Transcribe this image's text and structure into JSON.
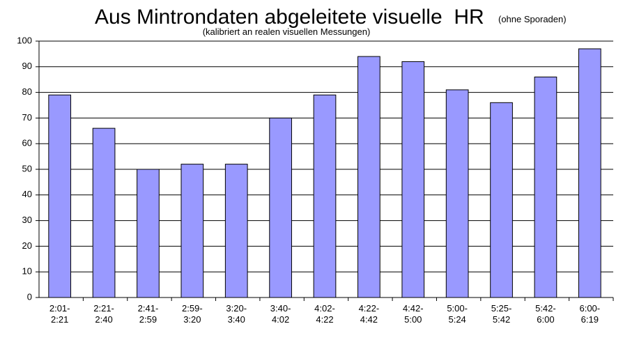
{
  "chart_data": {
    "type": "bar",
    "title": "Aus Mintrondaten abgeleitete visuelle  HR",
    "title_note": "(ohne Sporaden)",
    "subtitle": "(kalibriert an realen visuellen Messungen)",
    "categories": [
      [
        "2:01-",
        "2:21"
      ],
      [
        "2:21-",
        "2:40"
      ],
      [
        "2:41-",
        "2:59"
      ],
      [
        "2:59-",
        "3:20"
      ],
      [
        "3:20-",
        "3:40"
      ],
      [
        "3:40-",
        "4:02"
      ],
      [
        "4:02-",
        "4:22"
      ],
      [
        "4:22-",
        "4:42"
      ],
      [
        "4:42-",
        "5:00"
      ],
      [
        "5:00-",
        "5:24"
      ],
      [
        "5:25-",
        "5:42"
      ],
      [
        "5:42-",
        "6:00"
      ],
      [
        "6:00-",
        "6:19"
      ]
    ],
    "values": [
      79,
      66,
      50,
      52,
      52,
      70,
      79,
      94,
      92,
      81,
      76,
      86,
      97
    ],
    "color": "#9999ff",
    "ylim": [
      0,
      100
    ],
    "yticks": [
      0,
      10,
      20,
      30,
      40,
      50,
      60,
      70,
      80,
      90,
      100
    ],
    "grid": true
  }
}
